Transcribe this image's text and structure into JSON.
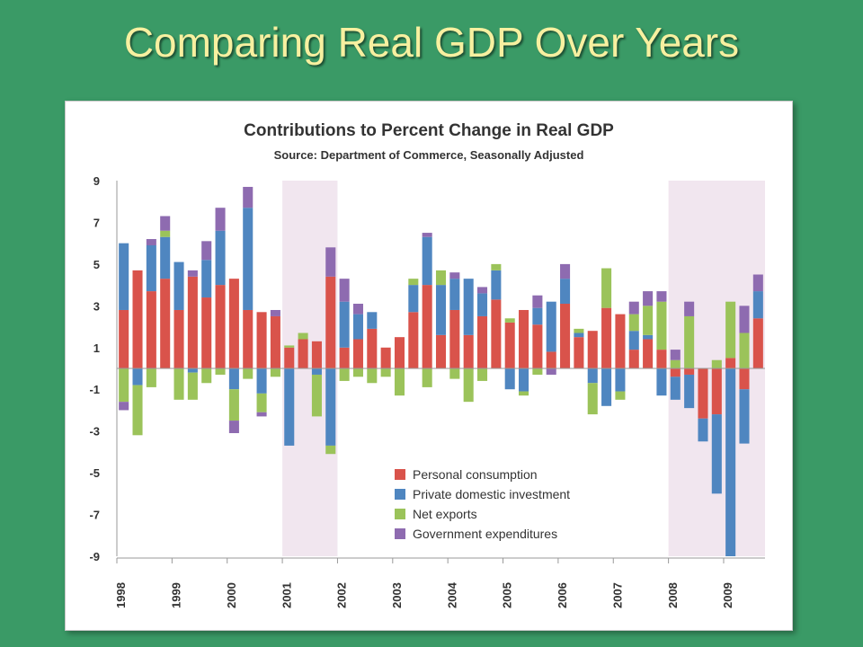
{
  "slide": {
    "title": "Comparing Real GDP Over Years"
  },
  "colors": {
    "background": "#3a9a66",
    "title": "#f7f0a0",
    "recession": "#f1e6ef",
    "personal": "#d9534b",
    "private": "#4f86c0",
    "net": "#9bc35a",
    "government": "#8e6bb0"
  },
  "chart_data": {
    "type": "bar",
    "stacked": true,
    "title": "Contributions to Percent Change in Real GDP",
    "subtitle": "Source: Department of Commerce, Seasonally Adjusted",
    "xlabel": "",
    "ylabel": "",
    "ylim": [
      -9,
      9
    ],
    "yticks": [
      9,
      7,
      5,
      3,
      1,
      -1,
      -3,
      -5,
      -7,
      -9
    ],
    "year_labels": [
      "1998",
      "1999",
      "2000",
      "2001",
      "2002",
      "2003",
      "2004",
      "2005",
      "2006",
      "2007",
      "2008",
      "2009"
    ],
    "recession_quarters": [
      [
        12,
        15
      ],
      [
        40,
        46
      ]
    ],
    "legend_position": "bottom-center",
    "series": [
      {
        "name": "Personal consumption",
        "color": "#d9534b",
        "values": [
          2.8,
          4.7,
          3.7,
          4.3,
          2.8,
          4.4,
          3.4,
          4.0,
          4.3,
          2.8,
          2.7,
          2.5,
          1.0,
          1.4,
          1.3,
          4.4,
          1.0,
          1.4,
          1.9,
          1.0,
          1.5,
          2.7,
          4.0,
          1.6,
          2.8,
          1.6,
          2.5,
          3.3,
          2.2,
          2.8,
          2.1,
          0.8,
          3.1,
          1.5,
          1.8,
          2.9,
          2.6,
          0.9,
          1.4,
          0.9,
          -0.4,
          -0.3,
          -2.4,
          -2.2,
          0.5,
          -1.0,
          2.4
        ]
      },
      {
        "name": "Private domestic investment",
        "color": "#4f86c0",
        "values": [
          3.2,
          -0.8,
          2.2,
          2.0,
          2.3,
          -0.2,
          1.8,
          2.6,
          -1.0,
          4.9,
          -1.2,
          0.0,
          -3.7,
          0.0,
          -0.3,
          -3.7,
          2.2,
          1.2,
          0.8,
          0.0,
          0.0,
          1.3,
          2.3,
          2.4,
          1.5,
          2.7,
          1.1,
          1.4,
          -1.0,
          -1.1,
          0.8,
          2.4,
          1.2,
          0.2,
          -0.7,
          -1.8,
          -1.1,
          0.9,
          0.2,
          -1.3,
          -1.1,
          -1.6,
          -1.1,
          -3.8,
          -9.0,
          -2.6,
          1.3
        ]
      },
      {
        "name": "Net exports",
        "color": "#9bc35a",
        "values": [
          -1.6,
          -2.4,
          -0.9,
          0.3,
          -1.5,
          -1.3,
          -0.7,
          -0.3,
          -1.5,
          -0.5,
          -0.9,
          -0.4,
          0.1,
          0.3,
          -2.0,
          -0.4,
          -0.6,
          -0.4,
          -0.7,
          -0.4,
          -1.3,
          0.3,
          -0.9,
          0.7,
          -0.5,
          -1.6,
          -0.6,
          0.3,
          0.2,
          -0.2,
          -0.3,
          0.0,
          0.0,
          0.2,
          -1.5,
          1.9,
          -0.4,
          0.8,
          1.4,
          2.3,
          0.4,
          2.5,
          0.0,
          0.4,
          2.7,
          1.7,
          0.0
        ]
      },
      {
        "name": "Government expenditures",
        "color": "#8e6bb0",
        "values": [
          -0.4,
          0.0,
          0.3,
          0.7,
          0.0,
          0.3,
          0.9,
          1.1,
          -0.6,
          1.0,
          -0.2,
          0.3,
          0.0,
          0.0,
          0.0,
          1.4,
          1.1,
          0.5,
          0.0,
          0.0,
          0.0,
          0.0,
          0.2,
          0.0,
          0.3,
          0.0,
          0.3,
          0.0,
          0.0,
          0.0,
          0.6,
          -0.3,
          0.7,
          0.0,
          0.0,
          0.0,
          0.0,
          0.6,
          0.7,
          0.5,
          0.5,
          0.7,
          0.0,
          0.0,
          0.0,
          1.3,
          0.8
        ]
      }
    ]
  }
}
